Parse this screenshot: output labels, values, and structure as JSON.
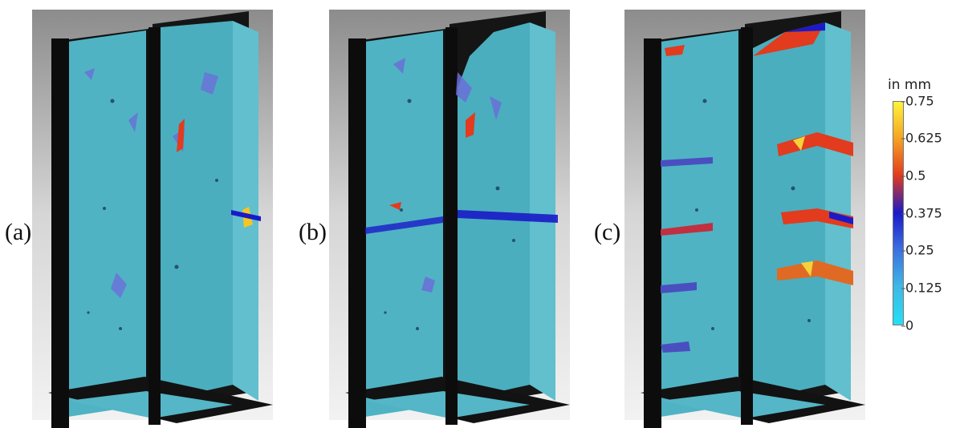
{
  "panels": [
    {
      "label": "(a)",
      "damage": "low"
    },
    {
      "label": "(b)",
      "damage": "medium"
    },
    {
      "label": "(c)",
      "damage": "high"
    }
  ],
  "colorbar": {
    "title": "in mm",
    "ticks": [
      "0.75",
      "0.625",
      "0.5",
      "0.375",
      "0.25",
      "0.125",
      "0"
    ],
    "colors": [
      "#fff23a",
      "#f5a623",
      "#e23b1e",
      "#1a1ac8",
      "#3b6fe0",
      "#3fb8e6",
      "#22d8f0"
    ]
  },
  "colors": {
    "specimen": "#4fb3c4",
    "specimen_side": "#5bbccc",
    "plate": "#0e0e0e",
    "background_top": "#8a8a8a",
    "defect": "#6a6fd8"
  }
}
